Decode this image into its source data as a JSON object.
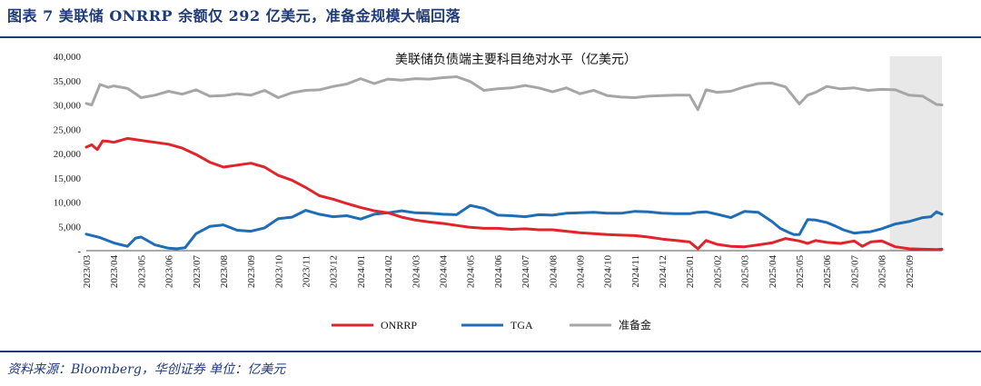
{
  "figure": {
    "title": "图表 7   美联储 ONRRP 余额仅 292 亿美元，准备金规模大幅回落",
    "source": "资料来源：Bloomberg，华创证券   单位：亿美元"
  },
  "colors": {
    "onrrp": "#e0242b",
    "tga": "#1f6db5",
    "reserves": "#a6a6a6",
    "shade": "#e8e8e8",
    "accent": "#1f3a78"
  },
  "chart_data": {
    "type": "line",
    "title": "美联储负债端主要科目绝对水平（亿美元）",
    "xlabel": "",
    "ylabel": "",
    "ylim": [
      0,
      40000
    ],
    "yticks": [
      0,
      5000,
      10000,
      15000,
      20000,
      25000,
      30000,
      35000,
      40000
    ],
    "ytick_labels": [
      "-",
      "5,000",
      "10,000",
      "15,000",
      "20,000",
      "25,000",
      "30,000",
      "35,000",
      "40,000"
    ],
    "x_categories": [
      "2023/03",
      "2023/04",
      "2023/05",
      "2023/06",
      "2023/07",
      "2023/08",
      "2023/09",
      "2023/10",
      "2023/11",
      "2023/12",
      "2024/01",
      "2024/02",
      "2024/03",
      "2024/04",
      "2024/05",
      "2024/06",
      "2024/07",
      "2024/08",
      "2024/09",
      "2024/10",
      "2024/11",
      "2024/12",
      "2025/01",
      "2025/02",
      "2025/03",
      "2025/04",
      "2025/05",
      "2025/06",
      "2025/07",
      "2025/08",
      "2025/09"
    ],
    "x_end": 31.2,
    "shaded_range": [
      29.3,
      31.2
    ],
    "legend": [
      "ONRRP",
      "TGA",
      "准备金"
    ],
    "legend_position": "bottom",
    "series": [
      {
        "name": "ONRRP",
        "color": "#e0242b",
        "x": [
          0,
          0.2,
          0.4,
          0.6,
          0.8,
          1,
          1.5,
          2,
          2.5,
          3,
          3.5,
          4,
          4.5,
          5,
          5.5,
          6,
          6.5,
          7,
          7.5,
          8,
          8.5,
          9,
          9.5,
          10,
          10.5,
          11,
          11.5,
          12,
          12.5,
          13,
          13.5,
          14,
          14.5,
          15,
          15.5,
          16,
          16.5,
          17,
          17.5,
          18,
          18.5,
          19,
          19.5,
          20,
          20.5,
          21,
          21.5,
          22,
          22.3,
          22.6,
          23,
          23.5,
          24,
          24.5,
          25,
          25.5,
          26,
          26.3,
          26.6,
          27,
          27.5,
          28,
          28.3,
          28.6,
          29,
          29.5,
          30,
          30.5,
          31,
          31.2
        ],
        "values": [
          21300,
          21800,
          20800,
          22600,
          22500,
          22300,
          23100,
          22700,
          22300,
          21900,
          21100,
          19800,
          18200,
          17200,
          17600,
          18000,
          17200,
          15500,
          14500,
          13000,
          11300,
          10600,
          9700,
          8900,
          8200,
          7800,
          6900,
          6300,
          5900,
          5600,
          5200,
          4800,
          4600,
          4600,
          4400,
          4500,
          4300,
          4300,
          4000,
          3700,
          3500,
          3300,
          3200,
          3100,
          2800,
          2400,
          2100,
          1800,
          400,
          2100,
          1300,
          900,
          800,
          1200,
          1600,
          2500,
          2000,
          1500,
          2100,
          1700,
          1500,
          2000,
          900,
          1800,
          2000,
          800,
          400,
          300,
          250,
          292
        ]
      },
      {
        "name": "TGA",
        "color": "#1f6db5",
        "x": [
          0,
          0.5,
          1,
          1.2,
          1.5,
          1.8,
          2,
          2.5,
          3,
          3.3,
          3.6,
          4,
          4.5,
          5,
          5.5,
          6,
          6.5,
          7,
          7.5,
          8,
          8.5,
          9,
          9.5,
          10,
          10.5,
          11,
          11.5,
          12,
          12.5,
          13,
          13.5,
          14,
          14.5,
          15,
          15.5,
          16,
          16.5,
          17,
          17.5,
          18,
          18.5,
          19,
          19.5,
          20,
          20.5,
          21,
          21.5,
          22,
          22.3,
          22.6,
          23,
          23.5,
          24,
          24.5,
          25,
          25.3,
          25.6,
          25.8,
          26,
          26.3,
          26.6,
          27,
          27.3,
          27.6,
          28,
          28.3,
          28.6,
          29,
          29.5,
          30,
          30.5,
          30.8,
          31,
          31.2
        ],
        "values": [
          3400,
          2700,
          1600,
          1300,
          900,
          2600,
          2800,
          1200,
          500,
          400,
          600,
          3500,
          5000,
          5300,
          4200,
          4000,
          4700,
          6600,
          6900,
          8300,
          7500,
          7000,
          7200,
          6500,
          7500,
          7800,
          8200,
          7800,
          7700,
          7500,
          7400,
          9300,
          8700,
          7300,
          7200,
          7000,
          7400,
          7300,
          7700,
          7800,
          7900,
          7700,
          7700,
          8100,
          8000,
          7700,
          7600,
          7600,
          7900,
          8000,
          7500,
          6800,
          8100,
          7900,
          6000,
          4600,
          3800,
          3300,
          3300,
          6400,
          6300,
          5800,
          5100,
          4300,
          3600,
          3800,
          3900,
          4500,
          5500,
          6000,
          6800,
          7000,
          8000,
          7500
        ]
      },
      {
        "name": "准备金",
        "color": "#a6a6a6",
        "x": [
          0,
          0.2,
          0.5,
          0.8,
          1,
          1.5,
          2,
          2.5,
          3,
          3.5,
          4,
          4.5,
          5,
          5.5,
          6,
          6.5,
          7,
          7.5,
          8,
          8.5,
          9,
          9.5,
          10,
          10.5,
          11,
          11.5,
          12,
          12.5,
          13,
          13.5,
          14,
          14.5,
          15,
          15.5,
          16,
          16.5,
          17,
          17.5,
          18,
          18.5,
          19,
          19.5,
          20,
          20.5,
          21,
          21.5,
          22,
          22.3,
          22.6,
          23,
          23.5,
          24,
          24.5,
          25,
          25.5,
          26,
          26.3,
          26.6,
          27,
          27.5,
          28,
          28.5,
          29,
          29.5,
          30,
          30.5,
          31,
          31.2
        ],
        "values": [
          30300,
          30000,
          34200,
          33600,
          33900,
          33400,
          31500,
          32000,
          32800,
          32200,
          33100,
          31800,
          31900,
          32300,
          32000,
          33000,
          31500,
          32500,
          33000,
          33100,
          33800,
          34300,
          35400,
          34400,
          35300,
          35100,
          35400,
          35300,
          35600,
          35800,
          34800,
          33000,
          33300,
          33500,
          34000,
          33500,
          32700,
          33500,
          32300,
          33000,
          31900,
          31600,
          31500,
          31800,
          31900,
          32000,
          32000,
          29000,
          33100,
          32600,
          32800,
          33700,
          34400,
          34500,
          33700,
          30200,
          32000,
          32600,
          33800,
          33300,
          33500,
          33000,
          33200,
          33100,
          32000,
          31800,
          30100,
          30000
        ]
      }
    ]
  }
}
